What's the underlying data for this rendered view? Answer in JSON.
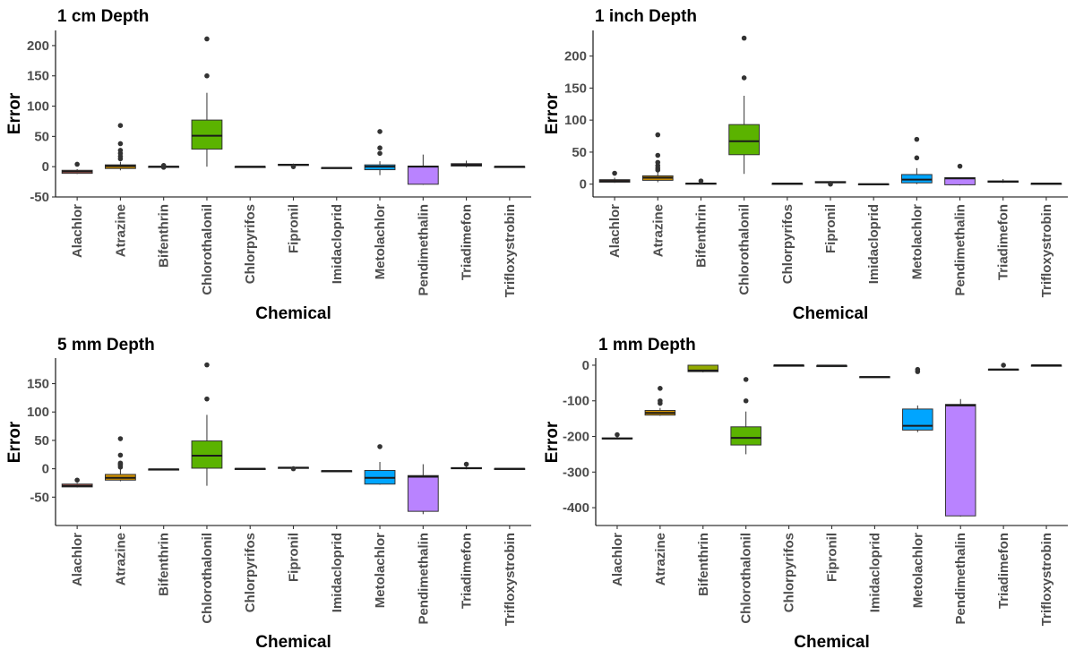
{
  "colors": {
    "Alachlor": "#F8766D",
    "Atrazine": "#D39200",
    "Bifenthrin": "#93AA00",
    "Chlorothalonil": "#5BB300",
    "Chlorpyrifos": "#00BA38",
    "Fipronil": "#00C19F",
    "Imidacloprid": "#00B9E3",
    "Metolachlor": "#00A5FF",
    "Pendimethalin": "#B983FF",
    "Triadimefon": "#F564E3",
    "Trifloxystrobin": "#FF61C3"
  },
  "chart_data": [
    {
      "type": "box",
      "title": "1 cm Depth",
      "xlabel": "Chemical",
      "ylabel": "Error",
      "ylim": [
        -50,
        225
      ],
      "yticks": [
        -50,
        0,
        50,
        100,
        150,
        200
      ],
      "ytick_labels": [
        "-50",
        "0",
        "50",
        "100",
        "150",
        "200"
      ],
      "categories": [
        "Alachlor",
        "Atrazine",
        "Bifenthrin",
        "Chlorothalonil",
        "Chlorpyrifos",
        "Fipronil",
        "Imidacloprid",
        "Metolachlor",
        "Pendimethalin",
        "Triadimefon",
        "Trifloxystrobin"
      ],
      "boxes": [
        {
          "min": -12,
          "q1": -11,
          "median": -8,
          "q3": -6,
          "max": -4,
          "outliers": [
            4
          ]
        },
        {
          "min": -6,
          "q1": -3,
          "median": 1,
          "q3": 3,
          "max": 8,
          "outliers": [
            13,
            17,
            22,
            27,
            38,
            68
          ]
        },
        {
          "min": -1,
          "q1": -0.5,
          "median": 0,
          "q3": 0.5,
          "max": 1,
          "outliers": [
            2,
            -1
          ]
        },
        {
          "min": 0,
          "q1": 29,
          "median": 51,
          "q3": 77,
          "max": 122,
          "outliers": [
            150,
            211
          ]
        },
        {
          "min": -0.5,
          "q1": -0.3,
          "median": 0,
          "q3": 0.3,
          "max": 0.5,
          "outliers": []
        },
        {
          "min": 1,
          "q1": 2,
          "median": 3,
          "q3": 4,
          "max": 5,
          "outliers": [
            0
          ]
        },
        {
          "min": -3,
          "q1": -2.5,
          "median": -2,
          "q3": -1.5,
          "max": -1,
          "outliers": []
        },
        {
          "min": -14,
          "q1": -5,
          "median": 0,
          "q3": 3,
          "max": 9,
          "outliers": [
            22,
            31,
            58
          ]
        },
        {
          "min": -30,
          "q1": -29,
          "median": 0,
          "q3": 1,
          "max": 20,
          "outliers": []
        },
        {
          "min": -1,
          "q1": 1,
          "median": 3,
          "q3": 5,
          "max": 10,
          "outliers": []
        },
        {
          "min": -0.5,
          "q1": -0.3,
          "median": 0,
          "q3": 0.3,
          "max": 0.5,
          "outliers": []
        }
      ]
    },
    {
      "type": "box",
      "title": "1 inch Depth",
      "xlabel": "Chemical",
      "ylabel": "Error",
      "ylim": [
        -20,
        240
      ],
      "yticks": [
        0,
        50,
        100,
        150,
        200
      ],
      "ytick_labels": [
        "0",
        "50",
        "100",
        "150",
        "200"
      ],
      "categories": [
        "Alachlor",
        "Atrazine",
        "Bifenthrin",
        "Chlorothalonil",
        "Chlorpyrifos",
        "Fipronil",
        "Imidacloprid",
        "Metolachlor",
        "Pendimethalin",
        "Triadimefon",
        "Trifloxystrobin"
      ],
      "boxes": [
        {
          "min": 2,
          "q1": 3,
          "median": 5,
          "q3": 7,
          "max": 10,
          "outliers": [
            17
          ]
        },
        {
          "min": 3,
          "q1": 6,
          "median": 10,
          "q3": 13,
          "max": 20,
          "outliers": [
            22,
            25,
            29,
            34,
            45,
            77
          ]
        },
        {
          "min": 0,
          "q1": 0.5,
          "median": 1,
          "q3": 1.5,
          "max": 2,
          "outliers": [
            5
          ]
        },
        {
          "min": 16,
          "q1": 46,
          "median": 67,
          "q3": 93,
          "max": 138,
          "outliers": [
            166,
            228
          ]
        },
        {
          "min": 0.5,
          "q1": 0.8,
          "median": 1,
          "q3": 1.2,
          "max": 1.5,
          "outliers": []
        },
        {
          "min": 1,
          "q1": 2,
          "median": 3,
          "q3": 4,
          "max": 5,
          "outliers": [
            0
          ]
        },
        {
          "min": -1,
          "q1": -0.5,
          "median": 0,
          "q3": 0.5,
          "max": 1,
          "outliers": []
        },
        {
          "min": 0,
          "q1": 2,
          "median": 7,
          "q3": 15,
          "max": 25,
          "outliers": [
            41,
            70
          ]
        },
        {
          "min": -2,
          "q1": -1,
          "median": 9,
          "q3": 10,
          "max": 10,
          "outliers": [
            28
          ]
        },
        {
          "min": 2,
          "q1": 3,
          "median": 4,
          "q3": 5,
          "max": 8,
          "outliers": []
        },
        {
          "min": 0.5,
          "q1": 0.8,
          "median": 1,
          "q3": 1.2,
          "max": 1.5,
          "outliers": []
        }
      ]
    },
    {
      "type": "box",
      "title": "5 mm Depth",
      "xlabel": "Chemical",
      "ylabel": "Error",
      "ylim": [
        -100,
        195
      ],
      "yticks": [
        -50,
        0,
        50,
        100,
        150
      ],
      "ytick_labels": [
        "-50",
        "0",
        "50",
        "100",
        "150"
      ],
      "categories": [
        "Alachlor",
        "Atrazine",
        "Bifenthrin",
        "Chlorothalonil",
        "Chlorpyrifos",
        "Fipronil",
        "Imidacloprid",
        "Metolachlor",
        "Pendimethalin",
        "Triadimefon",
        "Trifloxystrobin"
      ],
      "boxes": [
        {
          "min": -33,
          "q1": -32,
          "median": -30,
          "q3": -27,
          "max": -25,
          "outliers": [
            -20
          ]
        },
        {
          "min": -22,
          "q1": -20,
          "median": -16,
          "q3": -10,
          "max": 0,
          "outliers": [
            3,
            6,
            8,
            10,
            24,
            53
          ]
        },
        {
          "min": -2,
          "q1": -1.5,
          "median": -1,
          "q3": -0.5,
          "max": 0,
          "outliers": []
        },
        {
          "min": -30,
          "q1": 1,
          "median": 23,
          "q3": 49,
          "max": 95,
          "outliers": [
            123,
            183
          ]
        },
        {
          "min": -1,
          "q1": -0.5,
          "median": 0,
          "q3": 0.5,
          "max": 1,
          "outliers": []
        },
        {
          "min": 1,
          "q1": 1.5,
          "median": 2,
          "q3": 2.5,
          "max": 3,
          "outliers": [
            0
          ]
        },
        {
          "min": -5,
          "q1": -4.5,
          "median": -4,
          "q3": -3.5,
          "max": -3,
          "outliers": []
        },
        {
          "min": -28,
          "q1": -27,
          "median": -16,
          "q3": -3,
          "max": 12,
          "outliers": [
            39
          ]
        },
        {
          "min": -80,
          "q1": -75,
          "median": -14,
          "q3": -12,
          "max": 8,
          "outliers": []
        },
        {
          "min": -1,
          "q1": 0,
          "median": 1,
          "q3": 2,
          "max": 4,
          "outliers": [
            8
          ]
        },
        {
          "min": -1,
          "q1": -0.5,
          "median": 0,
          "q3": 0.5,
          "max": 1,
          "outliers": []
        }
      ]
    },
    {
      "type": "box",
      "title": "1 mm Depth",
      "xlabel": "Chemical",
      "ylabel": "Error",
      "ylim": [
        -450,
        20
      ],
      "yticks": [
        -400,
        -300,
        -200,
        -100,
        0
      ],
      "ytick_labels": [
        "-400",
        "-300",
        "-200",
        "-100",
        "0"
      ],
      "categories": [
        "Alachlor",
        "Atrazine",
        "Bifenthrin",
        "Chlorothalonil",
        "Chlorpyrifos",
        "Fipronil",
        "Imidacloprid",
        "Metolachlor",
        "Pendimethalin",
        "Triadimefon",
        "Trifloxystrobin"
      ],
      "boxes": [
        {
          "min": -208,
          "q1": -207,
          "median": -206,
          "q3": -204,
          "max": -200,
          "outliers": [
            -195
          ]
        },
        {
          "min": -142,
          "q1": -140,
          "median": -134,
          "q3": -127,
          "max": -120,
          "outliers": [
            -107,
            -100,
            -65
          ]
        },
        {
          "min": -20,
          "q1": -18,
          "median": -15,
          "q3": 0,
          "max": 0,
          "outliers": []
        },
        {
          "min": -250,
          "q1": -224,
          "median": -204,
          "q3": -173,
          "max": -130,
          "outliers": [
            -100,
            -40
          ]
        },
        {
          "min": 0,
          "q1": 0,
          "median": 0,
          "q3": 0,
          "max": 0,
          "outliers": []
        },
        {
          "min": -1,
          "q1": -1,
          "median": -1,
          "q3": -1,
          "max": -1,
          "outliers": []
        },
        {
          "min": -35,
          "q1": -34,
          "median": -33,
          "q3": -32,
          "max": -31,
          "outliers": []
        },
        {
          "min": -188,
          "q1": -182,
          "median": -170,
          "q3": -123,
          "max": -113,
          "outliers": [
            -18,
            -12
          ]
        },
        {
          "min": -425,
          "q1": -423,
          "median": -113,
          "q3": -110,
          "max": -95,
          "outliers": []
        },
        {
          "min": -14,
          "q1": -13,
          "median": -12,
          "q3": -11,
          "max": -10,
          "outliers": [
            0
          ]
        },
        {
          "min": 0,
          "q1": 0,
          "median": 0,
          "q3": 0,
          "max": 0,
          "outliers": []
        }
      ]
    }
  ]
}
